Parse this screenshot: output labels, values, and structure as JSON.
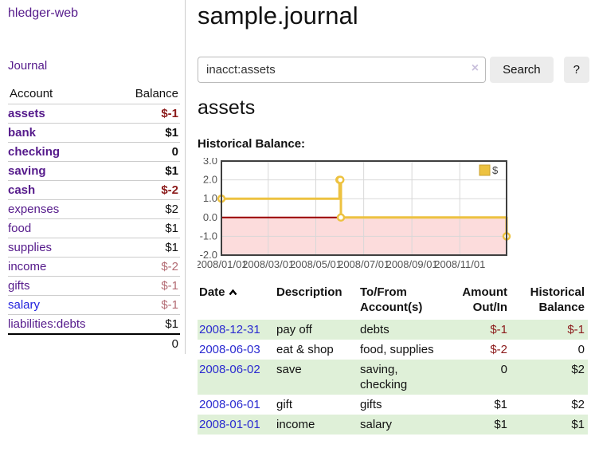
{
  "sidebar": {
    "brand": "hledger-web",
    "nav_journal": "Journal",
    "accounts_table": {
      "col_account": "Account",
      "col_balance": "Balance",
      "rows": [
        {
          "name": "assets",
          "balance": "$-1"
        },
        {
          "name": "bank",
          "balance": "$1"
        },
        {
          "name": "checking",
          "balance": "0"
        },
        {
          "name": "saving",
          "balance": "$1"
        },
        {
          "name": "cash",
          "balance": "$-2"
        },
        {
          "name": "expenses",
          "balance": "$2"
        },
        {
          "name": "food",
          "balance": "$1"
        },
        {
          "name": "supplies",
          "balance": "$1"
        },
        {
          "name": "income",
          "balance": "$-2"
        },
        {
          "name": "gifts",
          "balance": "$-1"
        },
        {
          "name": "salary",
          "balance": "$-1"
        },
        {
          "name": "liabilities:debts",
          "balance": "$1"
        }
      ],
      "total": "0"
    }
  },
  "main": {
    "title": "sample.journal",
    "search": {
      "value": "inacct:assets",
      "clear_icon": "×",
      "search_button": "Search",
      "help_button": "?"
    },
    "account_heading": "assets",
    "chart_title": "Historical Balance:"
  },
  "chart_data": {
    "type": "line",
    "step": true,
    "title": "Historical Balance",
    "ylim": [
      -2.0,
      3.0
    ],
    "yticks": [
      3.0,
      2.0,
      1.0,
      0.0,
      -1.0,
      -2.0
    ],
    "xticks": [
      {
        "label": "2008/01/01",
        "x": 0.0
      },
      {
        "label": "2008/03/01",
        "x": 0.164
      },
      {
        "label": "2008/05/01",
        "x": 0.331
      },
      {
        "label": "2008/07/01",
        "x": 0.499
      },
      {
        "label": "2008/09/01",
        "x": 0.668
      },
      {
        "label": "2008/11/01",
        "x": 0.836
      }
    ],
    "series": [
      {
        "name": "$",
        "color": "#edc240",
        "points": [
          {
            "date": "2008-01-01",
            "x": 0.0,
            "y": 1
          },
          {
            "date": "2008-06-01",
            "x": 0.414,
            "y": 2
          },
          {
            "date": "2008-06-02",
            "x": 0.417,
            "y": 2
          },
          {
            "date": "2008-06-03",
            "x": 0.419,
            "y": 0
          },
          {
            "date": "2008-12-31",
            "x": 1.0,
            "y": -1
          }
        ]
      }
    ],
    "zero_line_color": "#990000",
    "negative_fill": "#fcdcdc",
    "grid_color": "#d8d8d8",
    "border_color": "#3f3f3f",
    "tick_label_color": "#545454",
    "legend": {
      "label": "$",
      "swatch_color": "#edc240",
      "position": "top-right"
    }
  },
  "register": {
    "columns": {
      "date": "Date",
      "description": "Description",
      "accounts": "To/From Account(s)",
      "amount": "Amount Out/In",
      "balance": "Historical Balance"
    },
    "rows": [
      {
        "date": "2008-12-31",
        "description": "pay off",
        "accounts": "debts",
        "amount": "$-1",
        "balance": "$-1"
      },
      {
        "date": "2008-06-03",
        "description": "eat & shop",
        "accounts": "food, supplies",
        "amount": "$-2",
        "balance": "0"
      },
      {
        "date": "2008-06-02",
        "description": "save",
        "accounts": "saving, checking",
        "amount": "0",
        "balance": "$2"
      },
      {
        "date": "2008-06-01",
        "description": "gift",
        "accounts": "gifts",
        "amount": "$1",
        "balance": "$2"
      },
      {
        "date": "2008-01-01",
        "description": "income",
        "accounts": "salary",
        "amount": "$1",
        "balance": "$1"
      }
    ]
  },
  "icons": {
    "sort_ascending": "chevron-up",
    "clear_search": "x-clear"
  }
}
